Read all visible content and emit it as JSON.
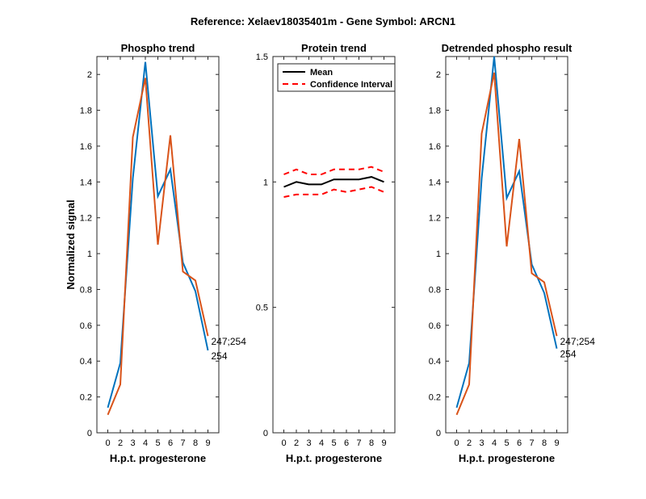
{
  "figure_title": "Reference:  Xelaev18035401m - Gene Symbol:  ARCN1",
  "colors": {
    "series_blue": "#0072BD",
    "series_orange": "#D95319",
    "mean": "#000000",
    "ci": "#FF0000",
    "axis": "#262626"
  },
  "chart_data": [
    {
      "type": "line",
      "title": "Phospho trend",
      "xlabel": "H.p.t. progesterone",
      "ylabel": "Normalized signal",
      "x_ticks": [
        "0",
        "2",
        "3",
        "4",
        "5",
        "6",
        "7",
        "8",
        "9"
      ],
      "ylim": [
        0,
        2.1
      ],
      "y_ticks": [
        "0",
        "0.2",
        "0.4",
        "0.6",
        "0.8",
        "1",
        "1.2",
        "1.4",
        "1.6",
        "1.8",
        "2"
      ],
      "y_tick_values": [
        0,
        0.2,
        0.4,
        0.6,
        0.8,
        1.0,
        1.2,
        1.4,
        1.6,
        1.8,
        2.0
      ],
      "series": [
        {
          "name": "254",
          "color_key": "series_blue",
          "values": [
            0.14,
            0.39,
            1.42,
            2.07,
            1.32,
            1.47,
            0.95,
            0.79,
            0.46
          ]
        },
        {
          "name": "247;254",
          "color_key": "series_orange",
          "values": [
            0.1,
            0.27,
            1.65,
            1.98,
            1.05,
            1.66,
            0.9,
            0.85,
            0.54
          ]
        }
      ],
      "end_labels": [
        "247;254",
        "254"
      ]
    },
    {
      "type": "line",
      "title": "Protein trend",
      "xlabel": "H.p.t. progesterone",
      "ylabel": "",
      "x_ticks": [
        "0",
        "2",
        "3",
        "4",
        "5",
        "6",
        "7",
        "8",
        "9"
      ],
      "ylim": [
        0,
        1.5
      ],
      "y_ticks": [
        "0",
        "0.5",
        "1",
        "1.5"
      ],
      "y_tick_values": [
        0,
        0.5,
        1.0,
        1.5
      ],
      "series": [
        {
          "name": "Mean",
          "color_key": "mean",
          "style": "solid",
          "values": [
            0.98,
            1.0,
            0.99,
            0.99,
            1.01,
            1.01,
            1.01,
            1.02,
            1.0
          ]
        },
        {
          "name": "Confidence Interval",
          "color_key": "ci",
          "style": "dashed",
          "values": [
            1.03,
            1.05,
            1.03,
            1.03,
            1.05,
            1.05,
            1.05,
            1.06,
            1.04
          ]
        },
        {
          "name": "Confidence Interval lower",
          "color_key": "ci",
          "style": "dashed",
          "values": [
            0.94,
            0.95,
            0.95,
            0.95,
            0.97,
            0.96,
            0.97,
            0.98,
            0.96
          ]
        }
      ],
      "legend": {
        "position": "top-left",
        "entries": [
          {
            "label": "Mean",
            "color_key": "mean",
            "style": "solid"
          },
          {
            "label": "Confidence Interval",
            "color_key": "ci",
            "style": "dashed"
          }
        ]
      }
    },
    {
      "type": "line",
      "title": "Detrended phospho result",
      "xlabel": "H.p.t. progesterone",
      "ylabel": "",
      "x_ticks": [
        "0",
        "2",
        "3",
        "4",
        "5",
        "6",
        "7",
        "8",
        "9"
      ],
      "ylim": [
        0,
        2.1
      ],
      "y_ticks": [
        "0",
        "0.2",
        "0.4",
        "0.6",
        "0.8",
        "1",
        "1.2",
        "1.4",
        "1.6",
        "1.8",
        "2"
      ],
      "y_tick_values": [
        0,
        0.2,
        0.4,
        0.6,
        0.8,
        1.0,
        1.2,
        1.4,
        1.6,
        1.8,
        2.0
      ],
      "series": [
        {
          "name": "254",
          "color_key": "series_blue",
          "values": [
            0.14,
            0.39,
            1.42,
            2.1,
            1.31,
            1.46,
            0.94,
            0.78,
            0.47
          ]
        },
        {
          "name": "247;254",
          "color_key": "series_orange",
          "values": [
            0.1,
            0.27,
            1.67,
            2.01,
            1.04,
            1.64,
            0.89,
            0.84,
            0.54
          ]
        }
      ],
      "end_labels": [
        "247;254",
        "254"
      ]
    }
  ]
}
